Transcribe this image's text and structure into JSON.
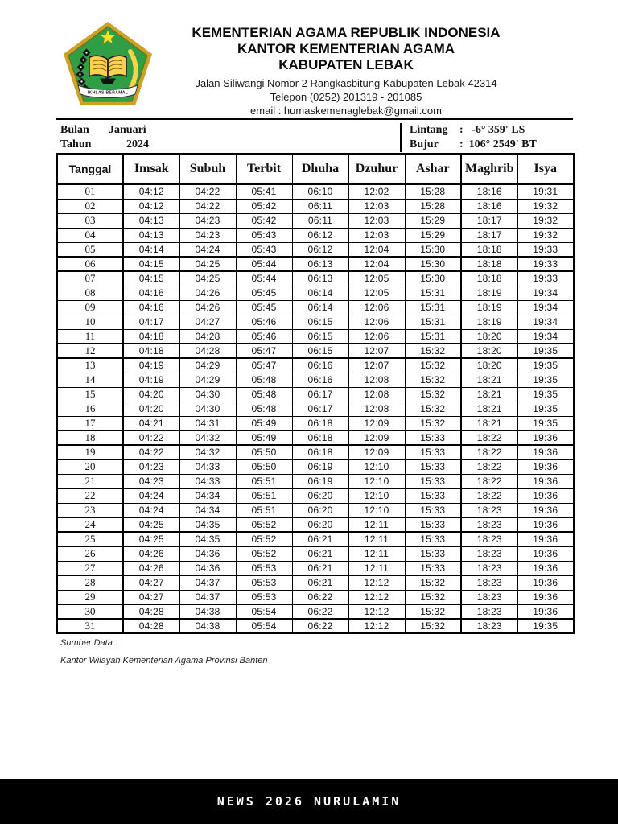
{
  "header": {
    "title_line1": "KEMENTERIAN AGAMA REPUBLIK INDONESIA",
    "title_line2": "KANTOR KEMENTERIAN AGAMA",
    "title_line3": "KABUPATEN LEBAK",
    "address": "Jalan Siliwangi Nomor 2 Rangkasbitung Kabupaten Lebak 42314",
    "phone": "Telepon (0252) 201319 - 201085",
    "email": "email : humaskemenaglebak@gmail.com",
    "logo": {
      "name": "kemenag-emblem",
      "banner_text": "IKHLAS BERAMAL",
      "green": "#2f9e45",
      "gold": "#c9a227",
      "yellow": "#ffd country"
    }
  },
  "info": {
    "bulan_label": "Bulan",
    "bulan_value": "Januari",
    "tahun_label": "Tahun",
    "tahun_value": "2024",
    "lintang_label": "Lintang",
    "lintang_value": ":   -6° 359' LS",
    "bujur_label": "Bujur",
    "bujur_value": ":  106° 2549' BT"
  },
  "table": {
    "columns": [
      "Tanggal",
      "Imsak",
      "Subuh",
      "Terbit",
      "Dhuha",
      "Dzuhur",
      "Ashar",
      "Maghrib",
      "Isya"
    ],
    "rows": [
      [
        "01",
        "04:12",
        "04:22",
        "05:41",
        "06:10",
        "12:02",
        "15:28",
        "18:16",
        "19:31"
      ],
      [
        "02",
        "04:12",
        "04:22",
        "05:42",
        "06:11",
        "12:03",
        "15:28",
        "18:16",
        "19:32"
      ],
      [
        "03",
        "04:13",
        "04:23",
        "05:42",
        "06:11",
        "12:03",
        "15:29",
        "18:17",
        "19:32"
      ],
      [
        "04",
        "04:13",
        "04:23",
        "05:43",
        "06:12",
        "12:03",
        "15:29",
        "18:17",
        "19:32"
      ],
      [
        "05",
        "04:14",
        "04:24",
        "05:43",
        "06:12",
        "12:04",
        "15:30",
        "18:18",
        "19:33"
      ],
      [
        "06",
        "04:15",
        "04:25",
        "05:44",
        "06:13",
        "12:04",
        "15:30",
        "18:18",
        "19:33"
      ],
      [
        "07",
        "04:15",
        "04:25",
        "05:44",
        "06:13",
        "12:05",
        "15:30",
        "18:18",
        "19:33"
      ],
      [
        "08",
        "04:16",
        "04:26",
        "05:45",
        "06:14",
        "12:05",
        "15:31",
        "18:19",
        "19:34"
      ],
      [
        "09",
        "04:16",
        "04:26",
        "05:45",
        "06:14",
        "12:06",
        "15:31",
        "18:19",
        "19:34"
      ],
      [
        "10",
        "04:17",
        "04:27",
        "05:46",
        "06:15",
        "12:06",
        "15:31",
        "18:19",
        "19:34"
      ],
      [
        "11",
        "04:18",
        "04:28",
        "05:46",
        "06:15",
        "12:06",
        "15:31",
        "18:20",
        "19:34"
      ],
      [
        "12",
        "04:18",
        "04:28",
        "05:47",
        "06:15",
        "12:07",
        "15:32",
        "18:20",
        "19:35"
      ],
      [
        "13",
        "04:19",
        "04:29",
        "05:47",
        "06:16",
        "12:07",
        "15:32",
        "18:20",
        "19:35"
      ],
      [
        "14",
        "04:19",
        "04:29",
        "05:48",
        "06:16",
        "12:08",
        "15:32",
        "18:21",
        "19:35"
      ],
      [
        "15",
        "04:20",
        "04:30",
        "05:48",
        "06:17",
        "12:08",
        "15:32",
        "18:21",
        "19:35"
      ],
      [
        "16",
        "04:20",
        "04:30",
        "05:48",
        "06:17",
        "12:08",
        "15:32",
        "18:21",
        "19:35"
      ],
      [
        "17",
        "04:21",
        "04:31",
        "05:49",
        "06:18",
        "12:09",
        "15:32",
        "18:21",
        "19:35"
      ],
      [
        "18",
        "04:22",
        "04:32",
        "05:49",
        "06:18",
        "12:09",
        "15:33",
        "18:22",
        "19:36"
      ],
      [
        "19",
        "04:22",
        "04:32",
        "05:50",
        "06:18",
        "12:09",
        "15:33",
        "18:22",
        "19:36"
      ],
      [
        "20",
        "04:23",
        "04:33",
        "05:50",
        "06:19",
        "12:10",
        "15:33",
        "18:22",
        "19:36"
      ],
      [
        "21",
        "04:23",
        "04:33",
        "05:51",
        "06:19",
        "12:10",
        "15:33",
        "18:22",
        "19:36"
      ],
      [
        "22",
        "04:24",
        "04:34",
        "05:51",
        "06:20",
        "12:10",
        "15:33",
        "18:22",
        "19:36"
      ],
      [
        "23",
        "04:24",
        "04:34",
        "05:51",
        "06:20",
        "12:10",
        "15:33",
        "18:23",
        "19:36"
      ],
      [
        "24",
        "04:25",
        "04:35",
        "05:52",
        "06:20",
        "12:11",
        "15:33",
        "18:23",
        "19:36"
      ],
      [
        "25",
        "04:25",
        "04:35",
        "05:52",
        "06:21",
        "12:11",
        "15:33",
        "18:23",
        "19:36"
      ],
      [
        "26",
        "04:26",
        "04:36",
        "05:52",
        "06:21",
        "12:11",
        "15:33",
        "18:23",
        "19:36"
      ],
      [
        "27",
        "04:26",
        "04:36",
        "05:53",
        "06:21",
        "12:11",
        "15:33",
        "18:23",
        "19:36"
      ],
      [
        "28",
        "04:27",
        "04:37",
        "05:53",
        "06:21",
        "12:12",
        "15:32",
        "18:23",
        "19:36"
      ],
      [
        "29",
        "04:27",
        "04:37",
        "05:53",
        "06:22",
        "12:12",
        "15:32",
        "18:23",
        "19:36"
      ],
      [
        "30",
        "04:28",
        "04:38",
        "05:54",
        "06:22",
        "12:12",
        "15:32",
        "18:23",
        "19:36"
      ],
      [
        "31",
        "04:28",
        "04:38",
        "05:54",
        "06:22",
        "12:12",
        "15:32",
        "18:23",
        "19:35"
      ]
    ]
  },
  "footer": {
    "sumber_label": "Sumber Data :",
    "sumber_value": "Kantor Wilayah Kementerian Agama Provinsi Banten"
  },
  "watermark": {
    "text": "NEWS 2026 NURULAMIN",
    "bg": "#000000",
    "fg": "#ffffff"
  }
}
